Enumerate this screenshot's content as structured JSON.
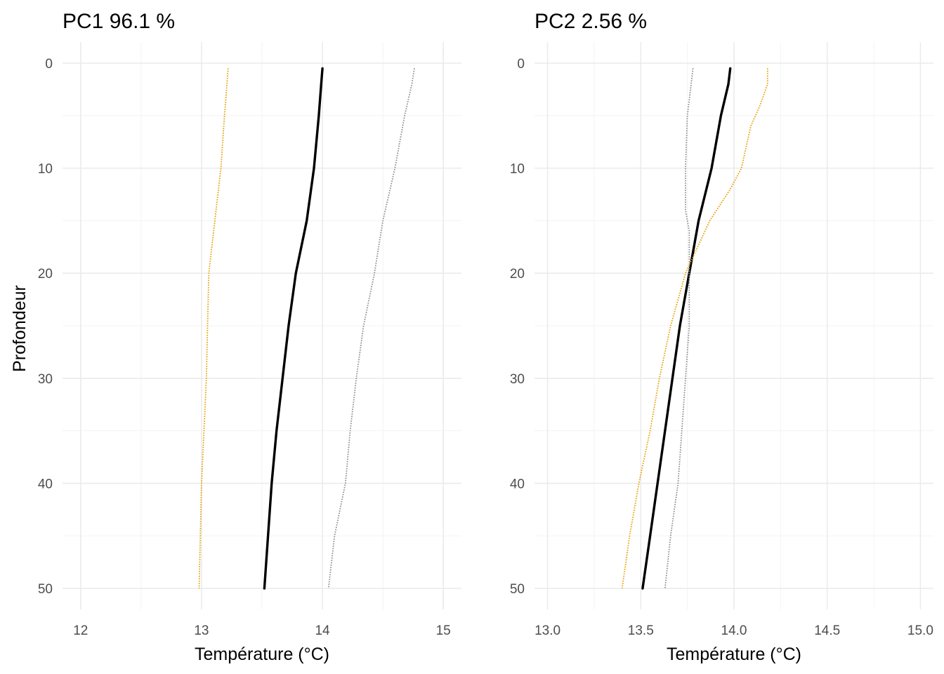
{
  "colors": {
    "black": "#000000",
    "grey": "#8c8c8c",
    "orange": "#E69F00"
  },
  "y_axis": {
    "label": "Profondeur"
  },
  "chart_data": [
    {
      "type": "line",
      "title": "PC1 96.1 %",
      "xlabel": "Température (°C)",
      "ylabel": "Profondeur",
      "xlim": [
        11.85,
        15.15
      ],
      "ylim": [
        52,
        -2
      ],
      "x_ticks": [
        "12",
        "13",
        "14",
        "15"
      ],
      "x_tick_values": [
        12,
        13,
        14,
        15
      ],
      "y_ticks": [
        "0",
        "10",
        "20",
        "30",
        "40",
        "50"
      ],
      "y_tick_values": [
        0,
        10,
        20,
        30,
        40,
        50
      ],
      "grid": true,
      "legend": "none",
      "series": [
        {
          "color": "black",
          "style": "solid",
          "points": [
            [
              14.0,
              0.5
            ],
            [
              13.99,
              2
            ],
            [
              13.97,
              5
            ],
            [
              13.93,
              10
            ],
            [
              13.87,
              15
            ],
            [
              13.78,
              20
            ],
            [
              13.72,
              25
            ],
            [
              13.67,
              30
            ],
            [
              13.62,
              35
            ],
            [
              13.58,
              40
            ],
            [
              13.55,
              45
            ],
            [
              13.52,
              50
            ]
          ]
        },
        {
          "color": "grey",
          "style": "dotted",
          "points": [
            [
              14.76,
              0.5
            ],
            [
              14.74,
              2
            ],
            [
              14.68,
              5
            ],
            [
              14.6,
              10
            ],
            [
              14.5,
              15
            ],
            [
              14.43,
              20
            ],
            [
              14.34,
              25
            ],
            [
              14.28,
              30
            ],
            [
              14.23,
              35
            ],
            [
              14.19,
              40
            ],
            [
              14.1,
              45
            ],
            [
              14.05,
              50
            ]
          ]
        },
        {
          "color": "orange",
          "style": "dotted",
          "points": [
            [
              13.22,
              0.5
            ],
            [
              13.21,
              2
            ],
            [
              13.19,
              5
            ],
            [
              13.16,
              10
            ],
            [
              13.11,
              15
            ],
            [
              13.06,
              20
            ],
            [
              13.05,
              25
            ],
            [
              13.04,
              30
            ],
            [
              13.02,
              35
            ],
            [
              13.0,
              40
            ],
            [
              12.99,
              45
            ],
            [
              12.98,
              50
            ]
          ]
        }
      ]
    },
    {
      "type": "line",
      "title": "PC2 2.56 %",
      "xlabel": "Température (°C)",
      "ylabel": "",
      "xlim": [
        12.93,
        15.07
      ],
      "ylim": [
        52,
        -2
      ],
      "x_ticks": [
        "13.0",
        "13.5",
        "14.0",
        "14.5",
        "15.0"
      ],
      "x_tick_values": [
        13.0,
        13.5,
        14.0,
        14.5,
        15.0
      ],
      "y_ticks": [
        "0",
        "10",
        "20",
        "30",
        "40",
        "50"
      ],
      "y_tick_values": [
        0,
        10,
        20,
        30,
        40,
        50
      ],
      "grid": true,
      "legend": "none",
      "series": [
        {
          "color": "black",
          "style": "solid",
          "points": [
            [
              13.98,
              0.5
            ],
            [
              13.97,
              2
            ],
            [
              13.93,
              5
            ],
            [
              13.88,
              10
            ],
            [
              13.81,
              15
            ],
            [
              13.76,
              20
            ],
            [
              13.71,
              25
            ],
            [
              13.67,
              30
            ],
            [
              13.63,
              35
            ],
            [
              13.59,
              40
            ],
            [
              13.55,
              45
            ],
            [
              13.51,
              50
            ]
          ]
        },
        {
          "color": "grey",
          "style": "dotted",
          "points": [
            [
              13.78,
              0.5
            ],
            [
              13.77,
              2
            ],
            [
              13.75,
              5
            ],
            [
              13.74,
              10
            ],
            [
              13.74,
              14
            ],
            [
              13.76,
              16
            ],
            [
              13.76,
              20
            ],
            [
              13.76,
              25
            ],
            [
              13.74,
              30
            ],
            [
              13.72,
              35
            ],
            [
              13.7,
              40
            ],
            [
              13.66,
              45
            ],
            [
              13.63,
              50
            ]
          ]
        },
        {
          "color": "orange",
          "style": "dotted",
          "points": [
            [
              14.18,
              0.5
            ],
            [
              14.18,
              2
            ],
            [
              14.14,
              4
            ],
            [
              14.09,
              6
            ],
            [
              14.04,
              10
            ],
            [
              13.98,
              12
            ],
            [
              13.87,
              15
            ],
            [
              13.74,
              20
            ],
            [
              13.66,
              25
            ],
            [
              13.6,
              30
            ],
            [
              13.55,
              35
            ],
            [
              13.49,
              40
            ],
            [
              13.44,
              45
            ],
            [
              13.4,
              50
            ]
          ]
        }
      ]
    }
  ]
}
